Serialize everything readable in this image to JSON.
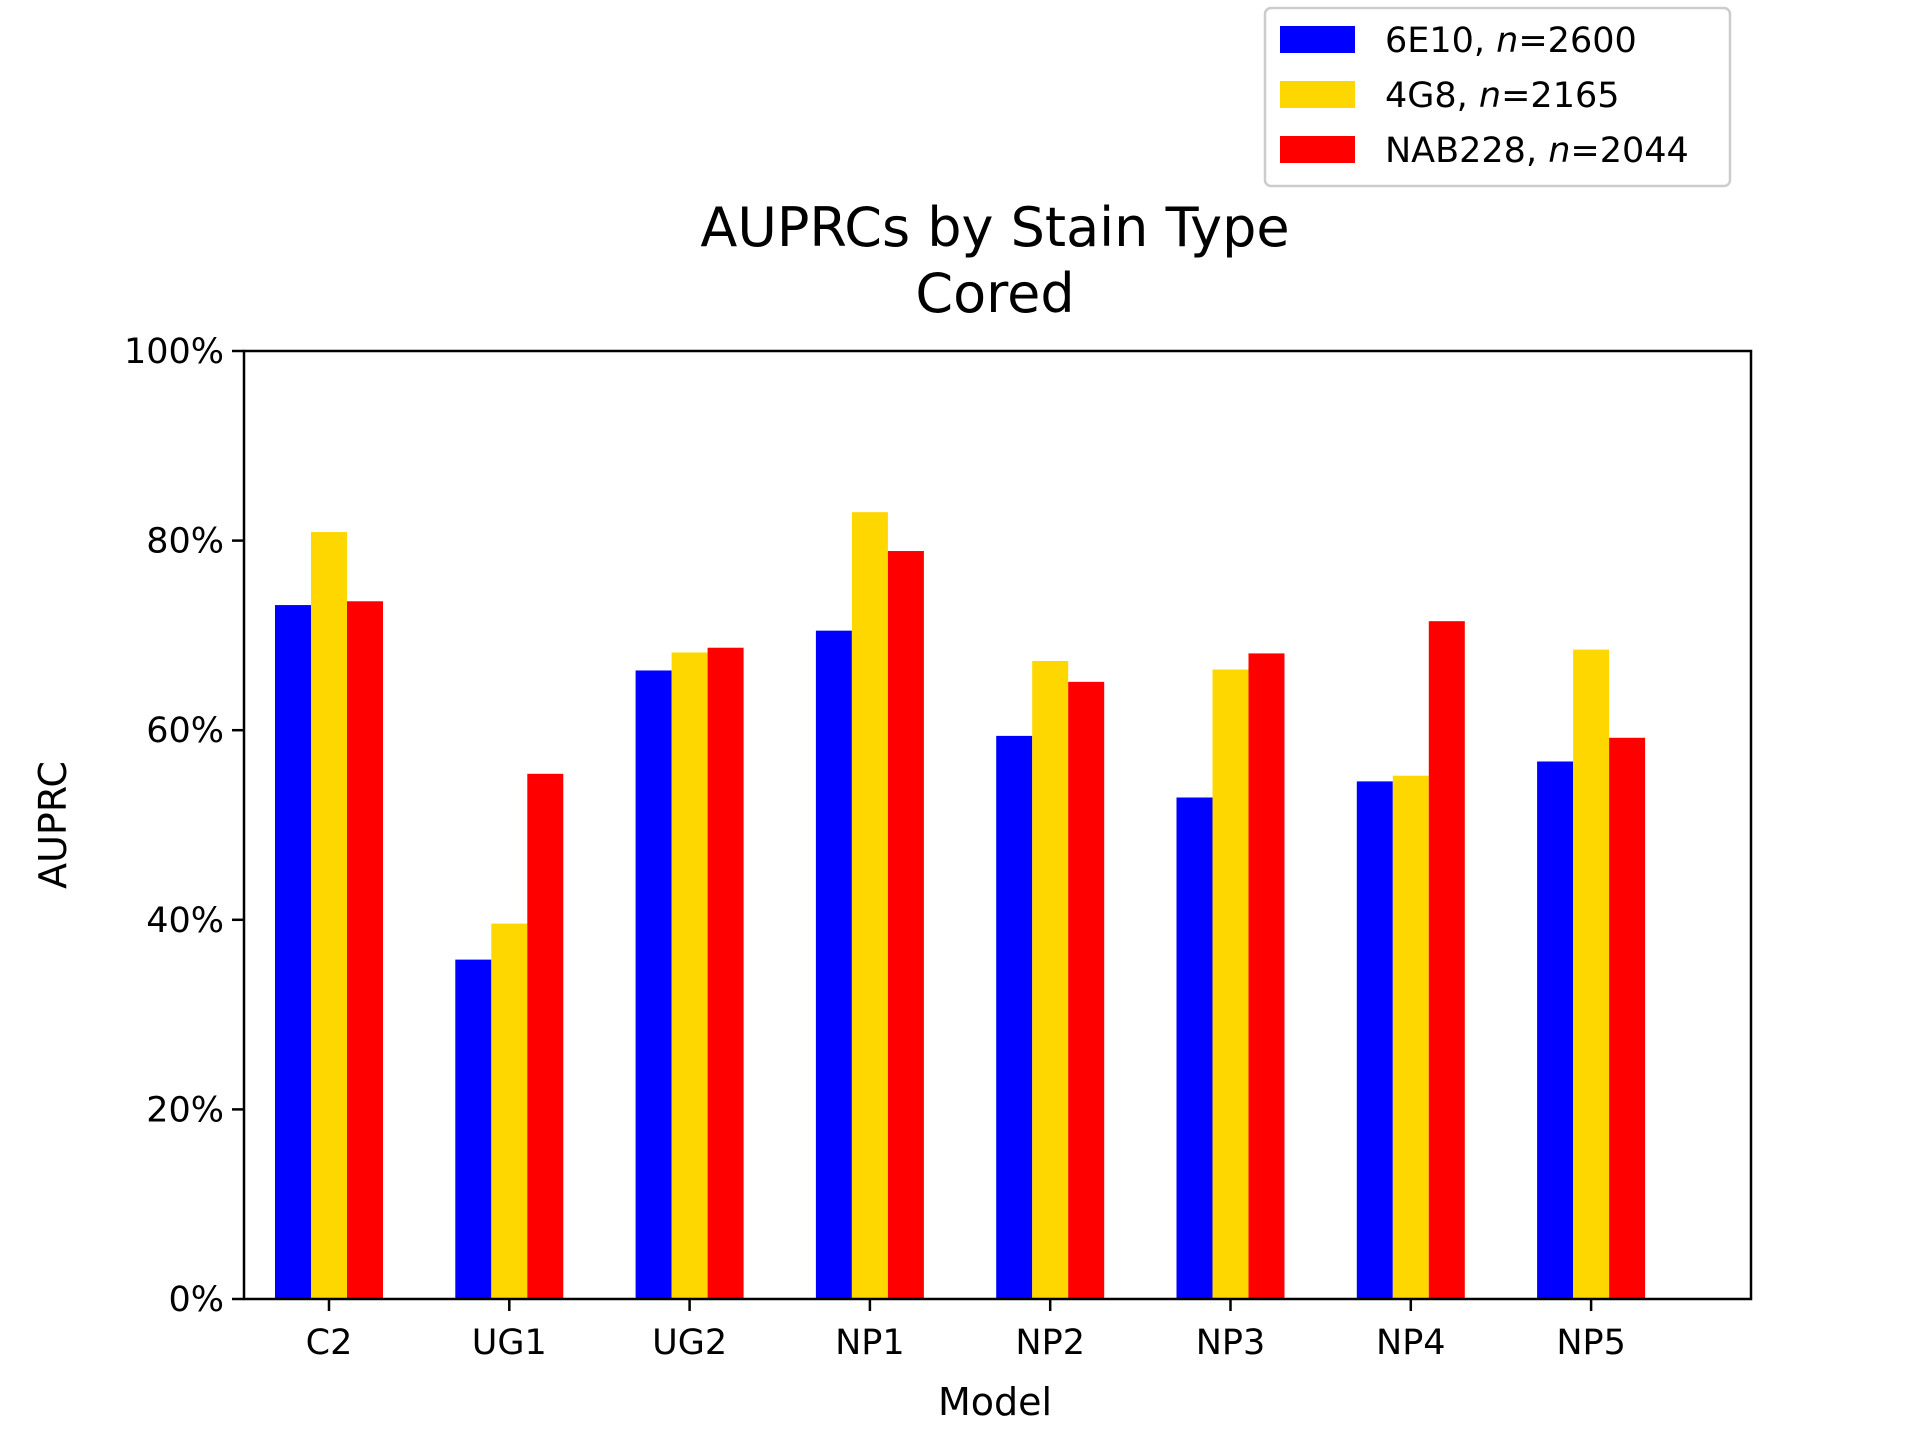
{
  "chart_data": {
    "type": "bar",
    "title": "AUPRCs by Stain Type",
    "subtitle": "Cored",
    "xlabel": "Model",
    "ylabel": "AUPRC",
    "ylim": [
      0,
      100
    ],
    "ytick_values": [
      0,
      20,
      40,
      60,
      80,
      100
    ],
    "ytick_labels": [
      "0%",
      "20%",
      "40%",
      "60%",
      "80%",
      "100%"
    ],
    "categories": [
      "C2",
      "UG1",
      "UG2",
      "NP1",
      "NP2",
      "NP3",
      "NP4",
      "NP5"
    ],
    "series": [
      {
        "name": "6E10",
        "legend_prefix": "6E10, ",
        "legend_var": "n",
        "legend_value": "=2600",
        "color": "#0000ff",
        "values": [
          73.2,
          35.8,
          66.3,
          70.5,
          59.4,
          52.9,
          54.6,
          56.7
        ]
      },
      {
        "name": "4G8",
        "legend_prefix": "4G8, ",
        "legend_var": "n",
        "legend_value": "=2165",
        "color": "#ffd700",
        "values": [
          80.9,
          39.6,
          68.2,
          83.0,
          67.3,
          66.4,
          55.2,
          68.5
        ]
      },
      {
        "name": "NAB228",
        "legend_prefix": "NAB228, ",
        "legend_var": "n",
        "legend_value": "=2044",
        "color": "#ff0000",
        "values": [
          73.6,
          55.4,
          68.7,
          78.9,
          65.1,
          68.1,
          71.5,
          59.2
        ]
      }
    ],
    "legend_position": "top-right outside",
    "grid": false
  }
}
